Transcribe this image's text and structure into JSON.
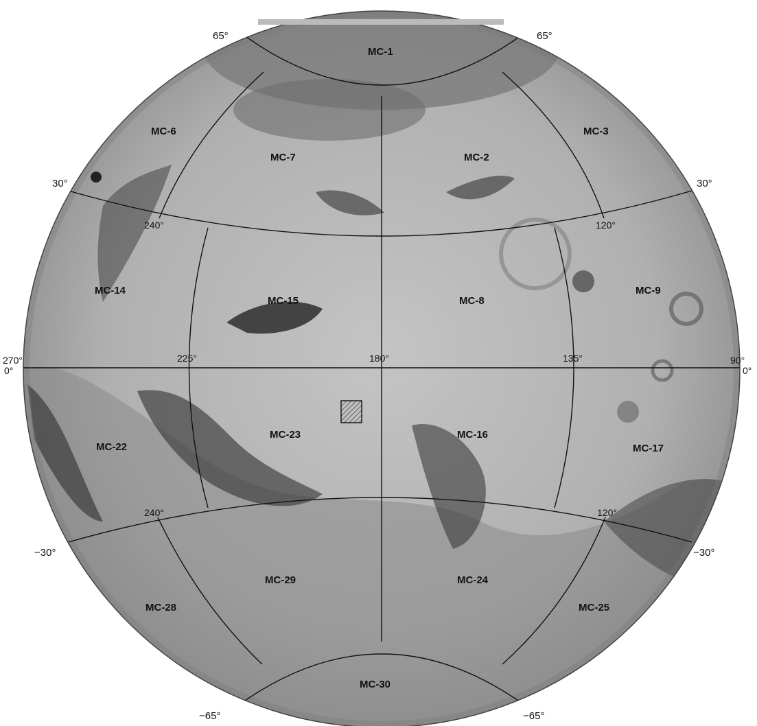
{
  "latitude_labels": {
    "north_65_left": "65°",
    "north_65_right": "65°",
    "north_30_left": "30°",
    "north_30_right": "30°",
    "south_30_left": "−30°",
    "south_30_right": "−30°",
    "south_65_left": "−65°",
    "south_65_right": "−65°"
  },
  "longitude_labels": {
    "edge_270": "270°",
    "edge_0_left": "0°",
    "edge_90": "90°",
    "edge_0_right": "0°",
    "lon_225": "225°",
    "lon_180": "180°",
    "lon_135": "135°",
    "north_240": "240°",
    "north_120": "120°",
    "south_240": "240°",
    "south_120": "120°"
  },
  "quadrangles": {
    "mc1": "MC-1",
    "mc2": "MC-2",
    "mc3": "MC-3",
    "mc6": "MC-6",
    "mc7": "MC-7",
    "mc8": "MC-8",
    "mc9": "MC-9",
    "mc14": "MC-14",
    "mc15": "MC-15",
    "mc16": "MC-16",
    "mc17": "MC-17",
    "mc22": "MC-22",
    "mc23": "MC-23",
    "mc24": "MC-24",
    "mc25": "MC-25",
    "mc28": "MC-28",
    "mc29": "MC-29",
    "mc30": "MC-30"
  },
  "colors": {
    "globe_base": "#aaaaaa",
    "dark_albedo": "#3a3a3a",
    "grid_lines": "#111111"
  }
}
